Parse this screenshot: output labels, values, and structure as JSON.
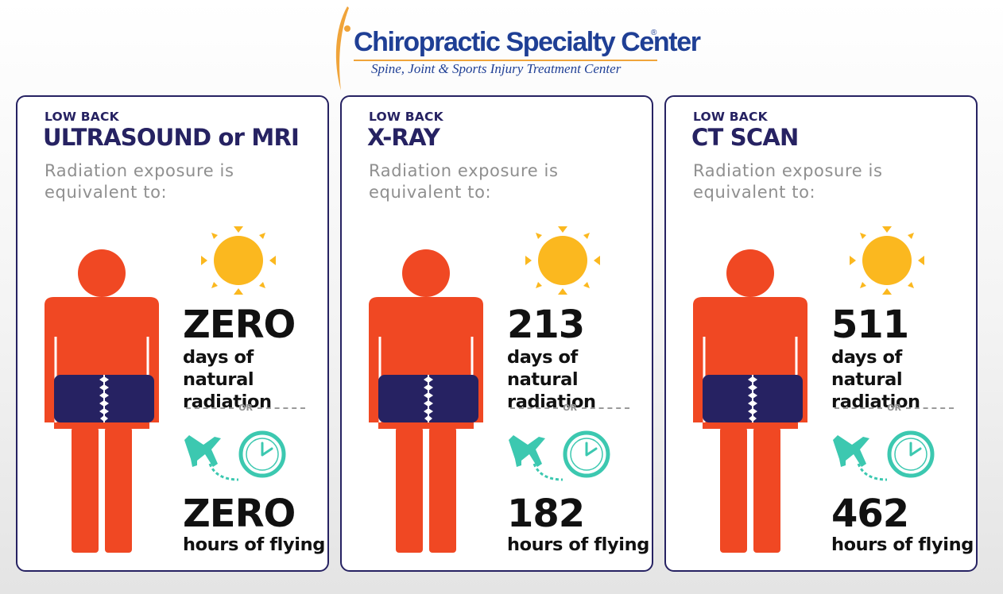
{
  "logo": {
    "title": "Chiropractic Specialty Center",
    "registered": "®",
    "subtitle": "Spine, Joint & Sports Injury Treatment Center"
  },
  "colors": {
    "navy": "#262262",
    "person": "#f04823",
    "sun": "#fbb81f",
    "teal": "#3cc8b0",
    "grey_text": "#8f8f8f"
  },
  "icons": [
    "person-icon",
    "spine-icon",
    "sun-icon",
    "airplane-icon",
    "clock-icon"
  ],
  "cards": [
    {
      "eyebrow": "LOW BACK",
      "title": "ULTRASOUND or MRI",
      "desc": "Radiation exposure is equivalent to:",
      "days_value": "ZERO",
      "days_label": "days of natural radiation",
      "or": "OR",
      "hours_value": "ZERO",
      "hours_label": "hours of flying"
    },
    {
      "eyebrow": "LOW BACK",
      "title": "X-RAY",
      "desc": "Radiation exposure is equivalent to:",
      "days_value": "213",
      "days_label": "days of natural radiation",
      "or": "OR",
      "hours_value": "182",
      "hours_label": "hours of flying"
    },
    {
      "eyebrow": "LOW BACK",
      "title": "CT SCAN",
      "desc": "Radiation exposure is equivalent to:",
      "days_value": "511",
      "days_label": "days of natural radiation",
      "or": "OR",
      "hours_value": "462",
      "hours_label": "hours of flying"
    }
  ]
}
